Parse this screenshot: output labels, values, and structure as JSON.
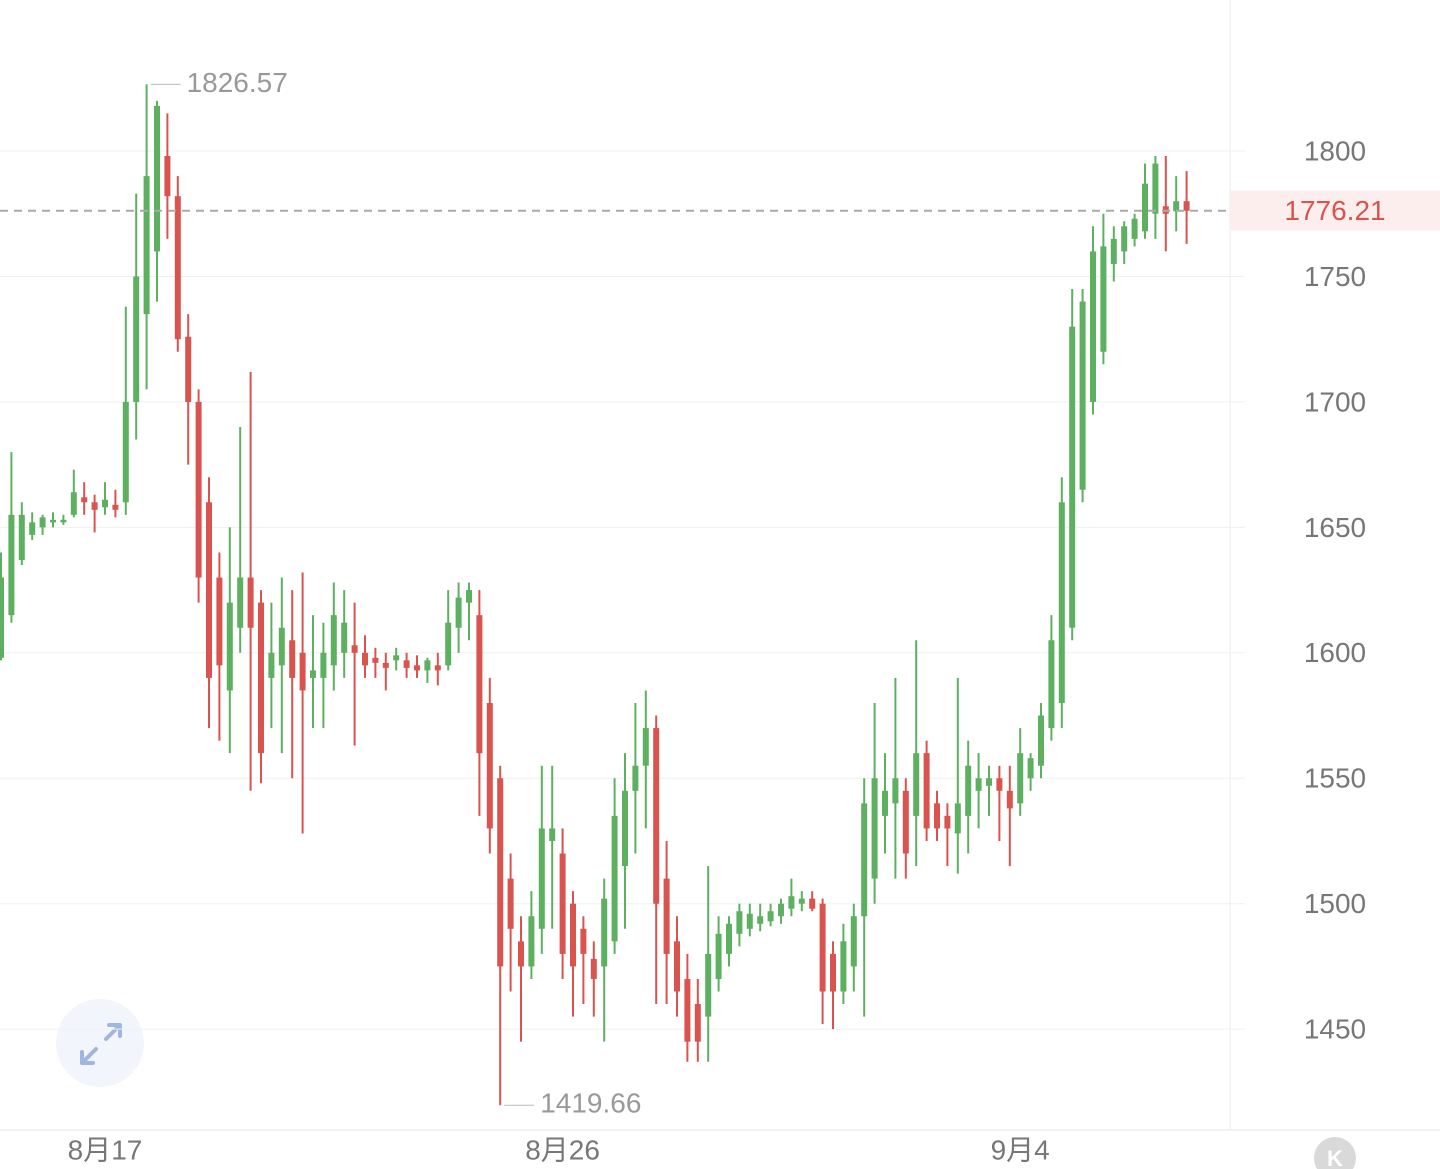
{
  "chart_data": {
    "type": "candlestick",
    "up_color": "#5cb060",
    "down_color": "#d9534f",
    "grid": true,
    "ylim": [
      1409.8,
      1860.2
    ],
    "yticks": [
      1450,
      1500,
      1550,
      1600,
      1650,
      1700,
      1750,
      1800
    ],
    "categories": [
      null,
      null,
      null,
      null,
      null,
      null,
      null,
      null,
      null,
      null,
      "8月17",
      null,
      null,
      null,
      null,
      null,
      null,
      null,
      null,
      null,
      null,
      null,
      null,
      null,
      null,
      null,
      null,
      null,
      null,
      null,
      null,
      null,
      null,
      null,
      null,
      null,
      null,
      null,
      null,
      null,
      null,
      null,
      null,
      null,
      null,
      null,
      null,
      null,
      null,
      null,
      null,
      null,
      null,
      null,
      "8月26",
      null,
      null,
      null,
      null,
      null,
      null,
      null,
      null,
      null,
      null,
      null,
      null,
      null,
      null,
      null,
      null,
      null,
      null,
      null,
      null,
      null,
      null,
      null,
      null,
      null,
      null,
      null,
      null,
      null,
      null,
      null,
      null,
      null,
      null,
      null,
      null,
      null,
      null,
      null,
      null,
      null,
      null,
      null,
      "9月4",
      null,
      null,
      null,
      null,
      null,
      null,
      null,
      null,
      null,
      null,
      null,
      null,
      null,
      null,
      null,
      null
    ],
    "open": [
      1598,
      1615,
      1637,
      1647,
      1650,
      1652,
      1652,
      1655,
      1662,
      1660,
      1658,
      1659,
      1660,
      1700,
      1735,
      1760,
      1798,
      1782,
      1726,
      1700,
      1660,
      1630,
      1585,
      1610,
      1630,
      1620,
      1590,
      1595,
      1605,
      1600,
      1590,
      1590,
      1595,
      1600,
      1603,
      1600,
      1598,
      1596,
      1597,
      1597,
      1595,
      1593,
      1595,
      1595,
      1610,
      1620,
      1615,
      1580,
      1550,
      1510,
      1485,
      1475,
      1490,
      1525,
      1520,
      1500,
      1490,
      1478,
      1475,
      1485,
      1515,
      1545,
      1555,
      1570,
      1510,
      1485,
      1470,
      1460,
      1455,
      1470,
      1480,
      1488,
      1490,
      1492,
      1493,
      1495,
      1498,
      1500,
      1502,
      1500,
      1480,
      1465,
      1475,
      1495,
      1510,
      1535,
      1540,
      1545,
      1535,
      1560,
      1540,
      1535,
      1528,
      1535,
      1545,
      1547,
      1550,
      1545,
      1540,
      1550,
      1555,
      1570,
      1580,
      1610,
      1665,
      1700,
      1720,
      1755,
      1760,
      1765,
      1768,
      1775,
      1778,
      1776,
      1780
    ],
    "high": [
      1640,
      1680,
      1660,
      1656,
      1655,
      1656,
      1655,
      1673,
      1668,
      1663,
      1668,
      1665,
      1738,
      1783,
      1826.57,
      1820,
      1815,
      1790,
      1735,
      1705,
      1670,
      1640,
      1650,
      1690,
      1712,
      1625,
      1620,
      1630,
      1625,
      1632,
      1615,
      1612,
      1628,
      1625,
      1620,
      1607,
      1602,
      1600,
      1602,
      1600,
      1599,
      1598,
      1600,
      1625,
      1628,
      1628,
      1625,
      1590,
      1555,
      1520,
      1495,
      1505,
      1555,
      1555,
      1530,
      1505,
      1495,
      1485,
      1510,
      1550,
      1560,
      1580,
      1585,
      1575,
      1525,
      1495,
      1480,
      1470,
      1515,
      1495,
      1495,
      1500,
      1500,
      1500,
      1500,
      1502,
      1510,
      1505,
      1505,
      1502,
      1485,
      1492,
      1500,
      1550,
      1580,
      1560,
      1590,
      1550,
      1605,
      1565,
      1545,
      1540,
      1590,
      1565,
      1560,
      1555,
      1555,
      1555,
      1570,
      1560,
      1580,
      1615,
      1670,
      1745,
      1745,
      1770,
      1775,
      1770,
      1772,
      1775,
      1795,
      1798,
      1798,
      1790,
      1792
    ],
    "low": [
      1597,
      1612,
      1635,
      1645,
      1647,
      1650,
      1651,
      1654,
      1655,
      1648,
      1655,
      1654,
      1655,
      1685,
      1705,
      1740,
      1765,
      1720,
      1675,
      1620,
      1570,
      1565,
      1560,
      1600,
      1545,
      1548,
      1570,
      1560,
      1550,
      1528,
      1570,
      1570,
      1585,
      1590,
      1563,
      1590,
      1590,
      1585,
      1593,
      1590,
      1590,
      1588,
      1587,
      1593,
      1600,
      1605,
      1535,
      1520,
      1419.66,
      1465,
      1445,
      1470,
      1480,
      1490,
      1470,
      1455,
      1460,
      1455,
      1445,
      1480,
      1490,
      1520,
      1530,
      1460,
      1460,
      1455,
      1437,
      1437,
      1437,
      1465,
      1475,
      1483,
      1487,
      1489,
      1491,
      1492,
      1495,
      1497,
      1497,
      1452,
      1450,
      1460,
      1465,
      1455,
      1500,
      1520,
      1510,
      1510,
      1515,
      1525,
      1525,
      1515,
      1512,
      1520,
      1530,
      1535,
      1525,
      1515,
      1535,
      1545,
      1550,
      1565,
      1570,
      1605,
      1660,
      1695,
      1715,
      1748,
      1755,
      1762,
      1765,
      1765,
      1760,
      1768,
      1763
    ],
    "close": [
      1630,
      1655,
      1655,
      1652,
      1654,
      1653,
      1653,
      1664,
      1660,
      1657,
      1661,
      1657,
      1700,
      1750,
      1790,
      1818,
      1782,
      1725,
      1700,
      1630,
      1590,
      1595,
      1620,
      1630,
      1610,
      1560,
      1600,
      1610,
      1590,
      1585,
      1593,
      1600,
      1615,
      1612,
      1600,
      1595,
      1596,
      1594,
      1599,
      1594,
      1593,
      1597,
      1593,
      1612,
      1622,
      1625,
      1560,
      1530,
      1475,
      1490,
      1475,
      1495,
      1530,
      1530,
      1480,
      1475,
      1480,
      1470,
      1502,
      1535,
      1545,
      1555,
      1570,
      1500,
      1480,
      1465,
      1445,
      1445,
      1480,
      1488,
      1492,
      1497,
      1496,
      1495,
      1497,
      1500,
      1503,
      1502,
      1498,
      1465,
      1465,
      1485,
      1495,
      1540,
      1550,
      1545,
      1550,
      1520,
      1560,
      1530,
      1530,
      1530,
      1540,
      1555,
      1550,
      1550,
      1545,
      1538,
      1560,
      1558,
      1575,
      1605,
      1660,
      1730,
      1740,
      1760,
      1762,
      1765,
      1770,
      1773,
      1787,
      1795,
      1775,
      1780,
      1776.21
    ],
    "badge": "K"
  }
}
